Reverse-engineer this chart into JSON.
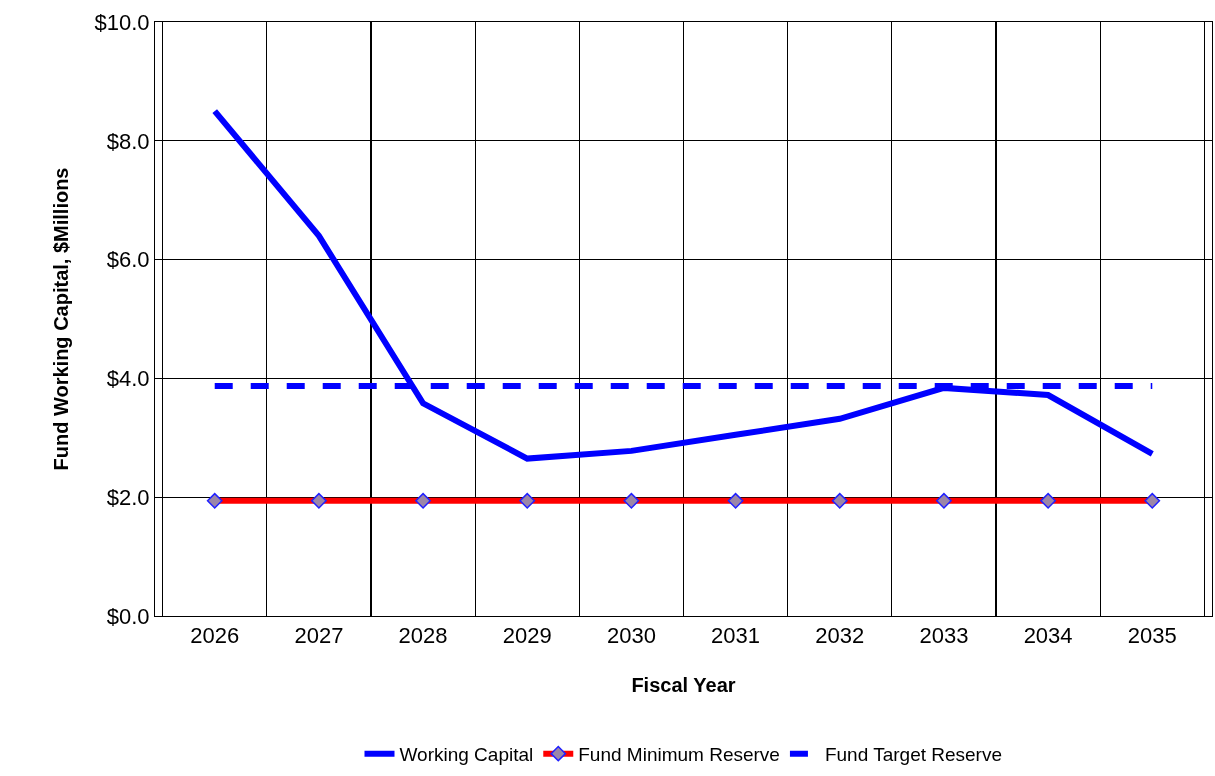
{
  "chart_data": {
    "type": "line",
    "xlabel": "Fiscal Year",
    "ylabel": "Fund Working Capital, $Millions",
    "categories": [
      "2026",
      "2027",
      "2028",
      "2029",
      "2030",
      "2031",
      "2032",
      "2033",
      "2034",
      "2035"
    ],
    "series": [
      {
        "name": "Working Capital",
        "color": "#0000ff",
        "line_style": "solid",
        "marker": "none",
        "values": [
          8.5,
          6.4,
          3.58,
          2.65,
          2.78,
          3.05,
          3.32,
          3.84,
          3.72,
          2.73
        ]
      },
      {
        "name": "Fund Minimum Reserve",
        "color": "#ff0000",
        "line_style": "solid",
        "marker": "diamond",
        "values": [
          1.94,
          1.94,
          1.94,
          1.94,
          1.94,
          1.94,
          1.94,
          1.94,
          1.94,
          1.94
        ]
      },
      {
        "name": "Fund Target Reserve",
        "color": "#0000ff",
        "line_style": "dashed",
        "marker": "none",
        "values": [
          3.87,
          3.87,
          3.87,
          3.87,
          3.87,
          3.87,
          3.87,
          3.87,
          3.87,
          3.87
        ]
      }
    ],
    "ylim": [
      0,
      10
    ],
    "yticks": [
      {
        "value": 0,
        "label": "$0.0"
      },
      {
        "value": 2,
        "label": "$2.0"
      },
      {
        "value": 4,
        "label": "$4.0"
      },
      {
        "value": 6,
        "label": "$6.0"
      },
      {
        "value": 8,
        "label": "$8.0"
      },
      {
        "value": 10,
        "label": "$10.0"
      }
    ],
    "grid": true,
    "legend": "bottom"
  }
}
